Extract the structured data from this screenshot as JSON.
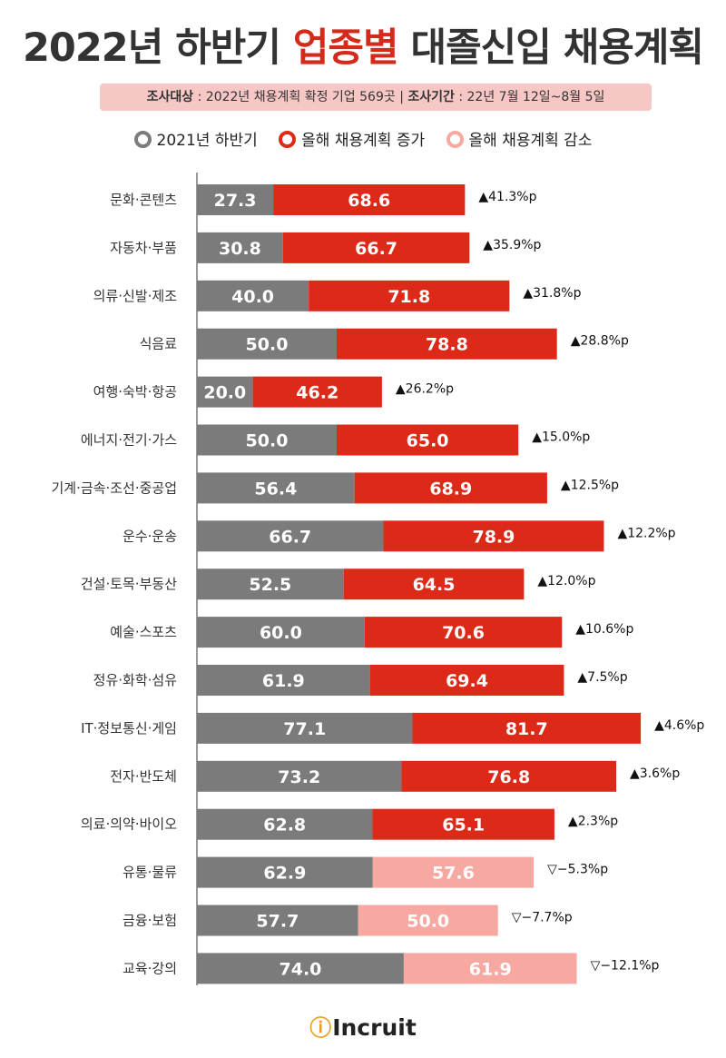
{
  "title": {
    "pre": "2022년 하반기 ",
    "accent": "업종별",
    "post": " 대졸신입 채용계획"
  },
  "info": {
    "target_label": "조사대상",
    "target_value": " : 2022년 채용계획 확정 기업 569곳",
    "sep": " | ",
    "period_label": "조사기간",
    "period_value": " : 22년 7월 12일~8월 5일"
  },
  "colors": {
    "prev": "#7c7b7b",
    "increase": "#dd2a18",
    "decrease": "#f6a8a1",
    "accent": "#d42a1c"
  },
  "legend": [
    {
      "label": "2021년 하반기",
      "color": "#7c7b7b"
    },
    {
      "label": "올해 채용계획 증가",
      "color": "#dd2a18"
    },
    {
      "label": "올해 채용계획 감소",
      "color": "#f6a8a1"
    }
  ],
  "chart_data": {
    "type": "bar",
    "orientation": "horizontal",
    "stacking": "segments placed end to end",
    "categories": [
      "문화·콘텐츠",
      "자동차·부품",
      "의류·신발·제조",
      "식음료",
      "여행·숙박·항공",
      "에너지·전기·가스",
      "기계·금속·조선·중공업",
      "운수·운송",
      "건설·토목·부동산",
      "예술·스포츠",
      "정유·화학·섬유",
      "IT·정보통신·게임",
      "전자·반도체",
      "의료·의약·바이오",
      "유통·물류",
      "금융·보험",
      "교육·강의"
    ],
    "series": [
      {
        "name": "2021년 하반기",
        "values": [
          27.3,
          30.8,
          40.0,
          50.0,
          20.0,
          50.0,
          56.4,
          66.7,
          52.5,
          60.0,
          61.9,
          77.1,
          73.2,
          62.8,
          62.9,
          57.7,
          74.0
        ]
      },
      {
        "name": "올해 채용계획",
        "values": [
          68.6,
          66.7,
          71.8,
          78.8,
          46.2,
          65.0,
          68.9,
          78.9,
          64.5,
          70.6,
          69.4,
          81.7,
          76.8,
          65.1,
          57.6,
          50.0,
          61.9
        ]
      }
    ],
    "value_labels_prev": [
      "27.3",
      "30.8",
      "40.0",
      "50.0",
      "20.0",
      "50.0",
      "56.4",
      "66.7",
      "52.5",
      "60.0",
      "61.9",
      "77.1",
      "73.2",
      "62.8",
      "62.9",
      "57.7",
      "74.0"
    ],
    "value_labels_curr": [
      "68.6",
      "66.7",
      "71.8",
      "78.8",
      "46.2",
      "65.0",
      "68.9",
      "78.9",
      "64.5",
      "70.6",
      "69.4",
      "81.7",
      "76.8",
      "65.1",
      "57.6",
      "50.0",
      "61.9"
    ],
    "changes": [
      "▲41.3%p",
      "▲35.9%p",
      "▲31.8%p",
      "▲28.8%p",
      "▲26.2%p",
      "▲15.0%p",
      "▲12.5%p",
      "▲12.2%p",
      "▲12.0%p",
      "▲10.6%p",
      "▲7.5%p",
      "▲4.6%p",
      "▲3.6%p",
      "▲2.3%p",
      "▽−5.3%p",
      "▽−7.7%p",
      "▽−12.1%p"
    ]
  },
  "logo": {
    "mark": "ⓘ",
    "text": "Incruit"
  }
}
